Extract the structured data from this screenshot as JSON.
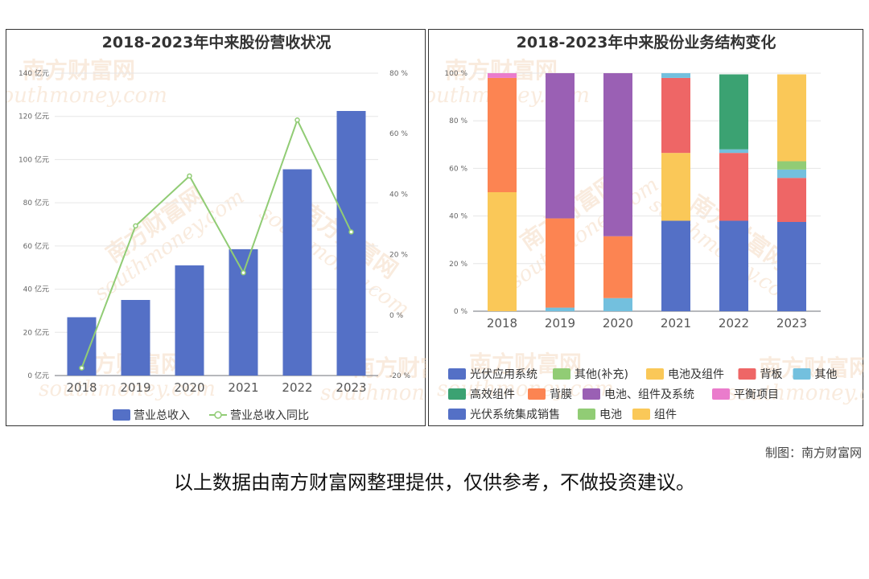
{
  "chart_data": [
    {
      "type": "bar",
      "title": "2018-2023年中来股份营收状况",
      "categories": [
        "2018",
        "2019",
        "2020",
        "2021",
        "2022",
        "2023"
      ],
      "series": [
        {
          "name": "营业总收入",
          "type": "bar",
          "axis": "left",
          "color": "#5470c6",
          "values": [
            27,
            35,
            51,
            58.5,
            95.5,
            122.5
          ]
        },
        {
          "name": "营业总收入同比",
          "type": "line",
          "axis": "right",
          "color": "#91cc75",
          "values": [
            -17.5,
            29.5,
            46,
            14,
            64.5,
            27.5
          ]
        }
      ],
      "y_left": {
        "ticks": [
          "0 亿元",
          "20 亿元",
          "40 亿元",
          "60 亿元",
          "80 亿元",
          "100 亿元",
          "120 亿元",
          "140 亿元"
        ],
        "range": [
          0,
          140
        ]
      },
      "y_right": {
        "ticks": [
          "-20 %",
          "0 %",
          "20 %",
          "40 %",
          "60 %",
          "80 %"
        ],
        "range": [
          -20,
          80
        ]
      },
      "legend_position": "bottom",
      "grid": true
    },
    {
      "type": "bar",
      "stacked": true,
      "title": "2018-2023年中来股份业务结构变化",
      "categories": [
        "2018",
        "2019",
        "2020",
        "2021",
        "2022",
        "2023"
      ],
      "y_axis": {
        "ticks": [
          "0 %",
          "20 %",
          "40 %",
          "60 %",
          "80 %",
          "100 %"
        ],
        "range": [
          0,
          100
        ]
      },
      "series": [
        {
          "name": "光伏应用系统",
          "color": "#5470c6",
          "values": [
            0,
            0,
            0,
            38,
            38,
            37.5
          ]
        },
        {
          "name": "其他(补充)",
          "color": "#91cc75",
          "values": [
            0,
            0,
            0,
            0,
            0,
            0
          ]
        },
        {
          "name": "电池及组件",
          "color": "#fac858",
          "values": [
            50,
            0,
            0,
            28.5,
            0,
            0
          ]
        },
        {
          "name": "背板",
          "color": "#ee6666",
          "values": [
            0,
            0,
            0,
            31.5,
            28.5,
            18.5
          ]
        },
        {
          "name": "其他",
          "color": "#73c0de",
          "values": [
            0,
            1.5,
            5.5,
            2,
            1.5,
            3.5
          ]
        },
        {
          "name": "高效组件",
          "color": "#3ba272",
          "values": [
            0,
            0,
            0,
            0,
            31.5,
            0
          ]
        },
        {
          "name": "背膜",
          "color": "#fc8452",
          "values": [
            48,
            37.5,
            26,
            0,
            0,
            0
          ]
        },
        {
          "name": "电池、组件及系统",
          "color": "#9a60b4",
          "values": [
            0,
            61,
            68.5,
            0,
            0,
            0
          ]
        },
        {
          "name": "平衡项目",
          "color": "#ea7ccc",
          "values": [
            2,
            0,
            0,
            0,
            0,
            0
          ]
        },
        {
          "name": "光伏系统集成销售",
          "color": "#5470c6",
          "values": [
            0,
            0,
            0,
            0,
            0,
            0
          ]
        },
        {
          "name": "电池",
          "color": "#91cc75",
          "values": [
            0,
            0,
            0,
            0,
            0,
            3.5
          ]
        },
        {
          "name": "组件",
          "color": "#fac858",
          "values": [
            0,
            0,
            0,
            0,
            0,
            36.5
          ]
        }
      ],
      "legend_position": "bottom",
      "grid": true
    }
  ],
  "watermark": {
    "cn": "南方财富网",
    "en": "southmoney.com"
  },
  "credit": "制图：南方财富网",
  "disclaimer": "以上数据由南方财富网整理提供，仅供参考，不做投资建议。"
}
